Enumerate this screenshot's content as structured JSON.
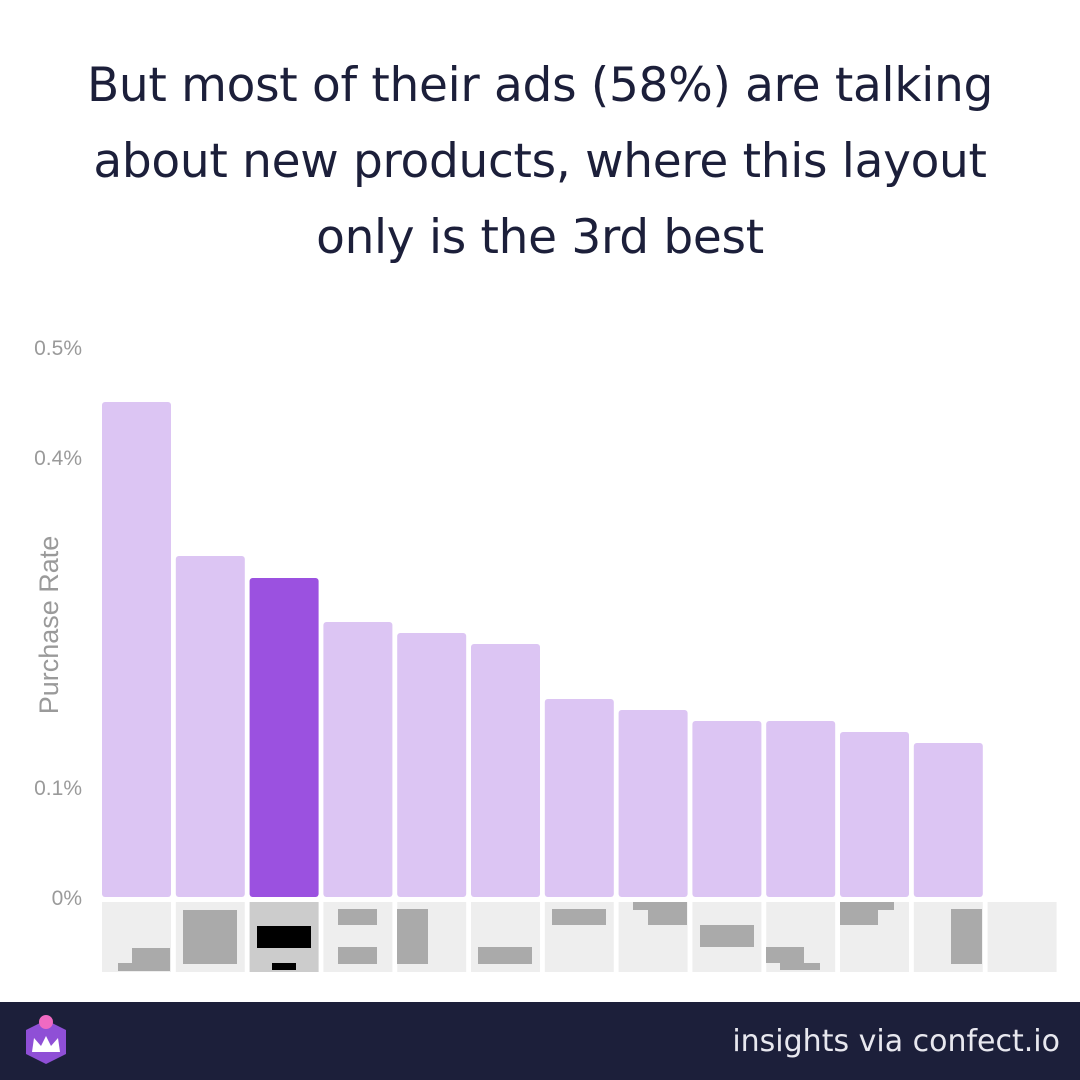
{
  "title": "But most of their ads (58%) are talking about new products, where this layout only is the 3rd best",
  "chart_data": {
    "type": "bar",
    "ylabel": "Purchase Rate",
    "ylim": [
      0,
      0.5
    ],
    "yticks": [
      {
        "value": 0,
        "label": "0%"
      },
      {
        "value": 0.1,
        "label": "0.1%"
      },
      {
        "value": 0.4,
        "label": "0.4%"
      },
      {
        "value": 0.5,
        "label": "0.5%"
      }
    ],
    "values": [
      0.45,
      0.31,
      0.29,
      0.25,
      0.24,
      0.23,
      0.18,
      0.17,
      0.16,
      0.16,
      0.15,
      0.14
    ],
    "highlight_index": 2,
    "colors": {
      "bar": "#dcc5f3",
      "highlight": "#9b51e0",
      "tick_label": "#9a9a9a",
      "thumb_bg": "#eeeeee",
      "thumb_bg_highlight": "#cccccc",
      "thumb_block": "#aaaaaa",
      "thumb_block_highlight": "#000000"
    }
  },
  "footer": {
    "text": "insights via confect.io",
    "logo_icon": "confect-crown-logo"
  }
}
